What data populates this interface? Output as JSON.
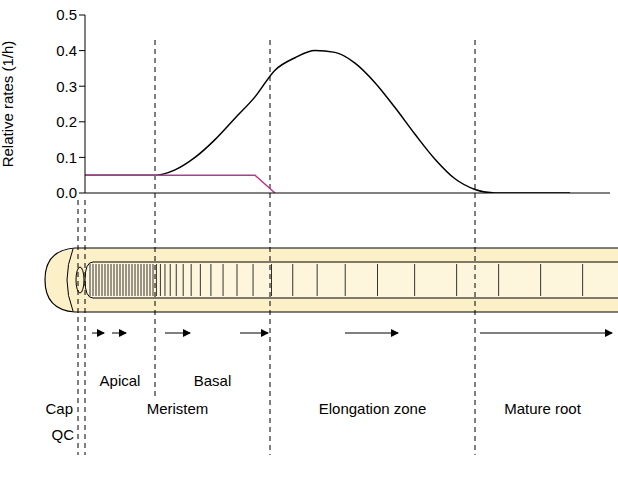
{
  "chart_data": {
    "type": "line",
    "y_label": "Relative rates (1/h)",
    "x": [
      0,
      30,
      70,
      90,
      110,
      130,
      150,
      170,
      190,
      210,
      230,
      250,
      270,
      290,
      310,
      330,
      350,
      370,
      390,
      410,
      485
    ],
    "xlim": [
      0,
      525
    ],
    "ylim": [
      0,
      0.5
    ],
    "yticks": [
      {
        "value": 0,
        "label": "0.0"
      },
      0.1,
      0.2,
      0.3,
      0.4,
      0.5
    ],
    "tick_labels": "y",
    "grid": false,
    "series": [
      {
        "color": "#000000",
        "values": [
          0.05,
          0.05,
          0.05,
          0.065,
          0.1,
          0.15,
          0.21,
          0.27,
          0.345,
          0.38,
          0.4,
          0.395,
          0.365,
          0.31,
          0.24,
          0.165,
          0.095,
          0.04,
          0.01,
          0,
          0
        ]
      },
      {
        "color": "#b8388f",
        "values": [
          0.05,
          0.05,
          0.05,
          0.05,
          0.05,
          0.05,
          0.05,
          0.05,
          0,
          null,
          null,
          null,
          null,
          null,
          null,
          null,
          null,
          null,
          null,
          null,
          null
        ]
      }
    ],
    "zones": [
      {
        "label": "Cap",
        "start": null,
        "end": -7
      },
      {
        "label": "QC",
        "start": -7,
        "end": 0
      },
      {
        "label": "Apical",
        "start": 0,
        "end": 70
      },
      {
        "label": "Basal",
        "start": 70,
        "end": 185
      },
      {
        "label": "Meristem",
        "start": 0,
        "end": 185
      },
      {
        "label": "Elongation zone",
        "start": 185,
        "end": 390
      },
      {
        "label": "Mature root",
        "start": 390,
        "end": null
      }
    ]
  }
}
